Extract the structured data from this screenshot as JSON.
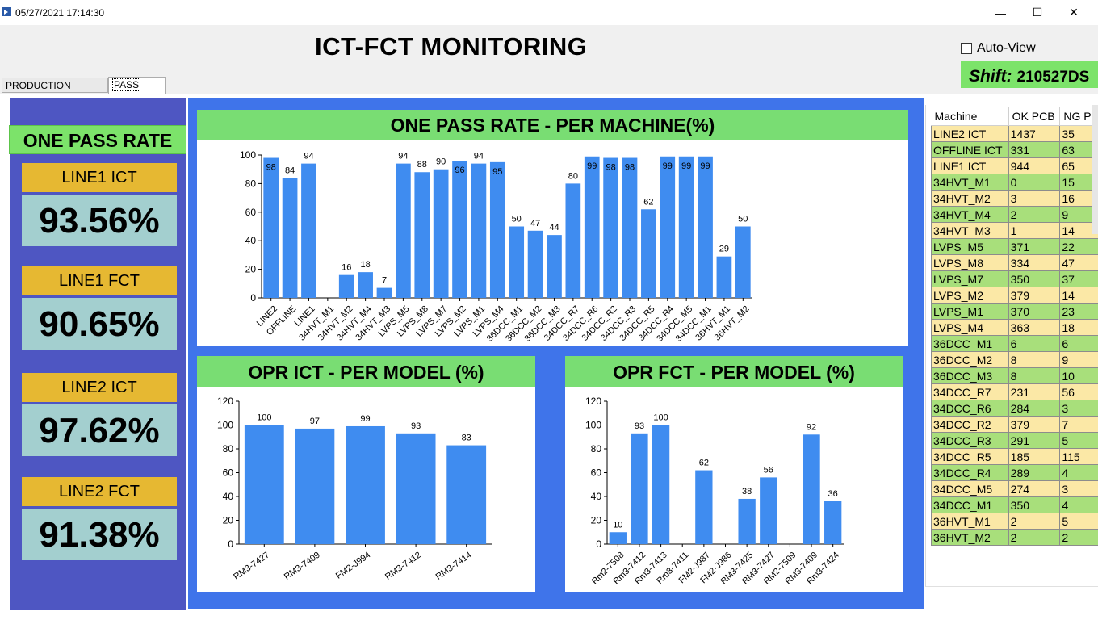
{
  "window": {
    "title": "05/27/2021 17:14:30",
    "minimize": "—",
    "maximize": "☐",
    "close": "✕"
  },
  "header": {
    "title": "ICT-FCT MONITORING",
    "auto_view_label": "Auto-View",
    "shift_label": "Shift:",
    "shift_value": "210527DS"
  },
  "tabs": [
    {
      "label": "PRODUCTION OUTPUT"
    },
    {
      "label": "PASS RATE"
    }
  ],
  "left": {
    "title": "ONE PASS RATE",
    "kpis": [
      {
        "label": "LINE1 ICT",
        "value": "93.56%"
      },
      {
        "label": "LINE1 FCT",
        "value": "90.65%"
      },
      {
        "label": "LINE2 ICT",
        "value": "97.62%"
      },
      {
        "label": "LINE2 FCT",
        "value": "91.38%"
      }
    ]
  },
  "chart_data": [
    {
      "type": "bar",
      "title": "ONE PASS RATE - PER MACHINE(%)",
      "categories": [
        "LINE2",
        "OFFLINE",
        "LINE1",
        "34HVT_M1",
        "34HVT_M2",
        "34HVT_M4",
        "34HVT_M3",
        "LVPS_M5",
        "LVPS_M8",
        "LVPS_M7",
        "LVPS_M2",
        "LVPS_M1",
        "LVPS_M4",
        "36DCC_M1",
        "36DCC_M2",
        "36DCC_M3",
        "34DCC_R7",
        "34DCC_R6",
        "34DCC_R2",
        "34DCC_R3",
        "34DCC_R5",
        "34DCC_R4",
        "34DCC_M5",
        "34DCC_M1",
        "36HVT_M1",
        "36HVT_M2"
      ],
      "values": [
        98,
        84,
        94,
        0,
        16,
        18,
        7,
        94,
        88,
        90,
        96,
        94,
        95,
        50,
        47,
        44,
        80,
        99,
        98,
        98,
        62,
        99,
        99,
        99,
        29,
        50
      ],
      "labels": [
        "98",
        "84",
        "94",
        "",
        "16",
        "18",
        "7",
        "94",
        "88",
        "90",
        "96",
        "94",
        "95",
        "50",
        "47",
        "44",
        "80",
        "99",
        "98",
        "98",
        "62",
        "99",
        "99",
        "99",
        "29",
        "50"
      ],
      "inside": [
        true,
        false,
        false,
        false,
        false,
        false,
        false,
        false,
        false,
        false,
        true,
        false,
        true,
        false,
        false,
        false,
        false,
        true,
        true,
        true,
        false,
        true,
        true,
        true,
        false,
        false
      ],
      "ylim": [
        0,
        100
      ],
      "yticks": [
        "0",
        "20",
        "40",
        "60",
        "80",
        "100"
      ],
      "xlabel": "",
      "ylabel": "",
      "color": "#3f8cf0"
    },
    {
      "type": "bar",
      "title": "OPR ICT - PER MODEL (%)",
      "categories": [
        "RM3-7427",
        "RM3-7409",
        "FM2-J994",
        "RM3-7412",
        "RM3-7414"
      ],
      "values": [
        100,
        97,
        99,
        93,
        83
      ],
      "labels": [
        "100",
        "97",
        "99",
        "93",
        "83"
      ],
      "ylim": [
        0,
        120
      ],
      "yticks": [
        "0",
        "20",
        "40",
        "60",
        "80",
        "100",
        "120"
      ],
      "xlabel": "",
      "ylabel": "",
      "color": "#3f8cf0"
    },
    {
      "type": "bar",
      "title": "OPR FCT - PER MODEL (%)",
      "categories": [
        "Rm2-7508",
        "Rm3-7412",
        "Rm3-7413",
        "Rm3-7411",
        "FM2-J987",
        "FM2-J986",
        "RM3-7425",
        "RM3-7427",
        "RM2-7509",
        "RM3-7409",
        "Rm3-7424"
      ],
      "values": [
        10,
        93,
        100,
        0,
        62,
        0,
        38,
        56,
        0,
        92,
        36
      ],
      "labels": [
        "10",
        "93",
        "100",
        "",
        "62",
        "",
        "38",
        "56",
        "",
        "92",
        "36"
      ],
      "ylim": [
        0,
        120
      ],
      "yticks": [
        "0",
        "20",
        "40",
        "60",
        "80",
        "100",
        "120"
      ],
      "xlabel": "",
      "ylabel": "",
      "color": "#3f8cf0"
    }
  ],
  "table": {
    "headers": [
      "Machine",
      "OK PCB",
      "NG P"
    ],
    "rows": [
      {
        "cells": [
          "LINE2 ICT",
          "1437",
          "35"
        ],
        "style": "y"
      },
      {
        "cells": [
          "OFFLINE ICT",
          "331",
          "63"
        ],
        "style": "g"
      },
      {
        "cells": [
          "LINE1 ICT",
          "944",
          "65"
        ],
        "style": "y"
      },
      {
        "cells": [
          "34HVT_M1",
          "0",
          "15"
        ],
        "style": "g"
      },
      {
        "cells": [
          "34HVT_M2",
          "3",
          "16"
        ],
        "style": "y"
      },
      {
        "cells": [
          "34HVT_M4",
          "2",
          "9"
        ],
        "style": "g"
      },
      {
        "cells": [
          "34HVT_M3",
          "1",
          "14"
        ],
        "style": "y"
      },
      {
        "cells": [
          "LVPS_M5",
          "371",
          "22"
        ],
        "style": "g"
      },
      {
        "cells": [
          "LVPS_M8",
          "334",
          "47"
        ],
        "style": "y"
      },
      {
        "cells": [
          "LVPS_M7",
          "350",
          "37"
        ],
        "style": "g"
      },
      {
        "cells": [
          "LVPS_M2",
          "379",
          "14"
        ],
        "style": "y"
      },
      {
        "cells": [
          "LVPS_M1",
          "370",
          "23"
        ],
        "style": "g"
      },
      {
        "cells": [
          "LVPS_M4",
          "363",
          "18"
        ],
        "style": "y"
      },
      {
        "cells": [
          "36DCC_M1",
          "6",
          "6"
        ],
        "style": "g"
      },
      {
        "cells": [
          "36DCC_M2",
          "8",
          "9"
        ],
        "style": "y"
      },
      {
        "cells": [
          "36DCC_M3",
          "8",
          "10"
        ],
        "style": "g"
      },
      {
        "cells": [
          "34DCC_R7",
          "231",
          "56"
        ],
        "style": "y"
      },
      {
        "cells": [
          "34DCC_R6",
          "284",
          "3"
        ],
        "style": "g"
      },
      {
        "cells": [
          "34DCC_R2",
          "379",
          "7"
        ],
        "style": "y"
      },
      {
        "cells": [
          "34DCC_R3",
          "291",
          "5"
        ],
        "style": "g"
      },
      {
        "cells": [
          "34DCC_R5",
          "185",
          "115"
        ],
        "style": "y"
      },
      {
        "cells": [
          "34DCC_R4",
          "289",
          "4"
        ],
        "style": "g"
      },
      {
        "cells": [
          "34DCC_M5",
          "274",
          "3"
        ],
        "style": "y"
      },
      {
        "cells": [
          "34DCC_M1",
          "350",
          "4"
        ],
        "style": "g"
      },
      {
        "cells": [
          "36HVT_M1",
          "2",
          "5"
        ],
        "style": "y"
      },
      {
        "cells": [
          "36HVT_M2",
          "2",
          "2"
        ],
        "style": "g"
      }
    ]
  }
}
